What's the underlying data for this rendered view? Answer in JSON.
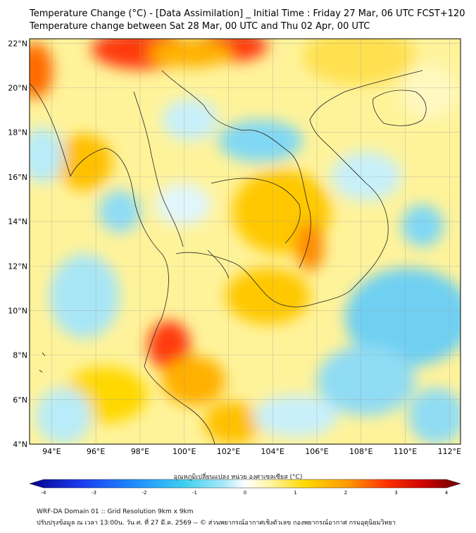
{
  "title": {
    "line1": "Temperature Change (°C) - [Data Assimilation] _ Initial Time : Friday 27 Mar, 06 UTC FCST+120",
    "line2": "Temperature change between Sat 28 Mar, 00 UTC and Thu 02 Apr, 00 UTC"
  },
  "map": {
    "lon_range": [
      93,
      112.5
    ],
    "lat_range": [
      4,
      22.2
    ],
    "lon_ticks": [
      "94°E",
      "96°E",
      "98°E",
      "100°E",
      "102°E",
      "104°E",
      "106°E",
      "108°E",
      "110°E",
      "112°E"
    ],
    "lat_ticks": [
      "22°N",
      "20°N",
      "18°N",
      "16°N",
      "14°N",
      "12°N",
      "10°N",
      "8°N",
      "6°N",
      "4°N"
    ],
    "grid": true
  },
  "colorbar": {
    "title": "อุณหภูมิเปลี่ยนแปลง หน่วย องศาเซลเซียส (°C)",
    "range": [
      -4,
      4
    ],
    "tick_labels": [
      "-4",
      "-3",
      "-2",
      "-1",
      "0",
      "1",
      "2",
      "3",
      "4"
    ],
    "colors": [
      "#08008a",
      "#1a3cf0",
      "#1e90ff",
      "#3fd0f0",
      "#a8e8f8",
      "#ffffff",
      "#fff5a0",
      "#ffd800",
      "#ff9800",
      "#ff3000",
      "#c80000",
      "#6a0000"
    ]
  },
  "footer": {
    "line1": "WRF-DA Domain 01 :: Grid Resolution 9km x 9km",
    "line2": "ปรับปรุงข้อมูล ณ เวลา 13:00น. วัน ศ. ที่ 27 มี.ค. 2569 -- © ส่วนพยากรณ์อากาศเชิงตัวเลข กองพยากรณ์อากาศ กรมอุตุนิยมวิทยา"
  }
}
